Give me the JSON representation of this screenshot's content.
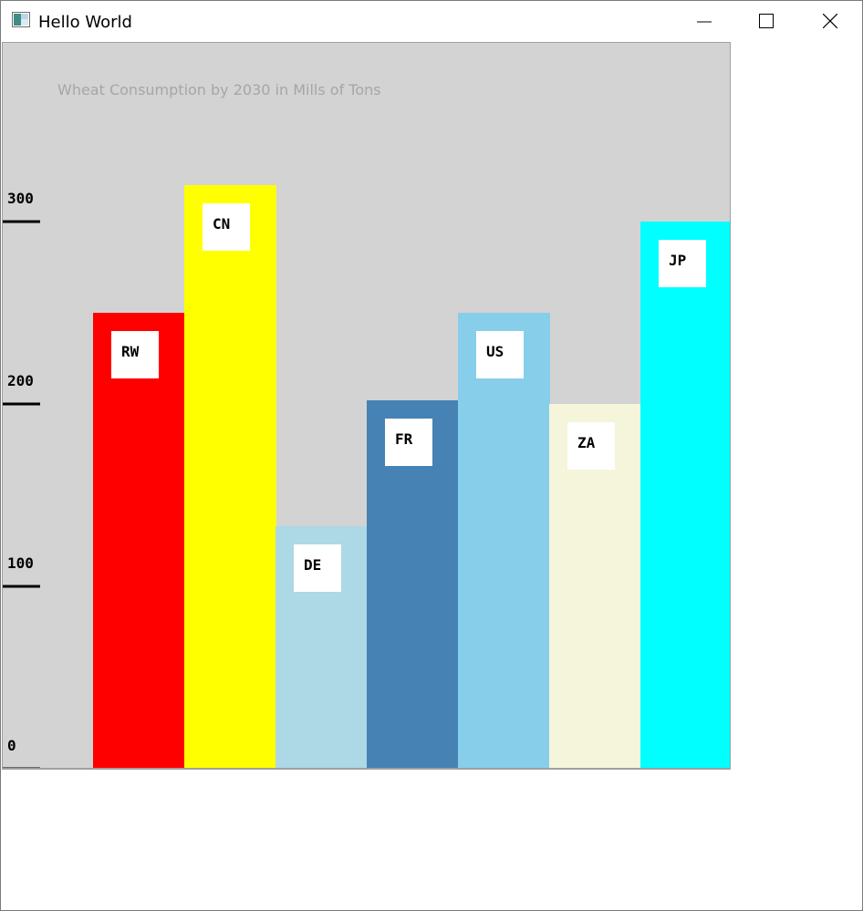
{
  "window": {
    "title": "Hello World",
    "icon": "app-window-icon"
  },
  "colors": {
    "plot_background": "#d3d3d3",
    "title_text": "#a6a6a6",
    "label_box": "#ffffff"
  },
  "chart_data": {
    "type": "bar",
    "title": "Wheat Consumption by 2030 in Mills of Tons",
    "xlabel": "",
    "ylabel": "",
    "categories": [
      "RW",
      "CN",
      "DE",
      "FR",
      "US",
      "ZA",
      "JP"
    ],
    "values": [
      250,
      320,
      133,
      202,
      250,
      200,
      300
    ],
    "colors": [
      "#ff0000",
      "#ffff00",
      "#add8e6",
      "#4682b4",
      "#87ceeb",
      "#f5f5dc",
      "#00ffff"
    ],
    "ylim": [
      0,
      400
    ],
    "yticks": [
      0,
      100,
      200,
      300
    ],
    "ytick_labels": [
      "0",
      "100",
      "200",
      "300"
    ],
    "grid": false,
    "legend": "none"
  }
}
